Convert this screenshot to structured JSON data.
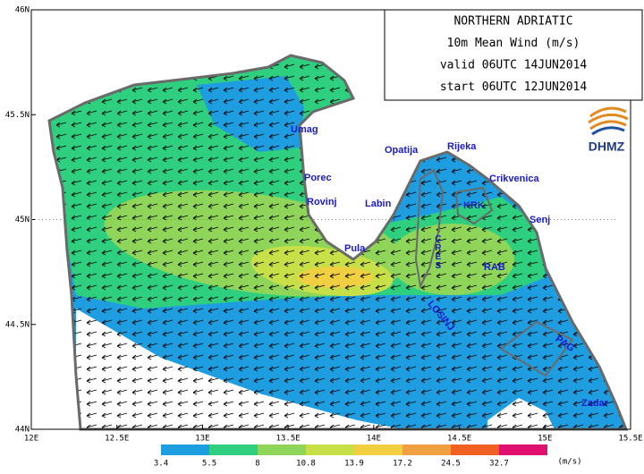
{
  "map": {
    "title_lines": [
      "NORTHERN ADRIATIC",
      "10m Mean Wind (m/s)",
      "valid 06UTC 14JUN2014",
      "start 06UTC 12JUN2014"
    ],
    "logo": "DHMZ",
    "xlim": [
      12,
      15.5
    ],
    "ylim": [
      44,
      46
    ],
    "xticks": [
      {
        "value": 12,
        "label": "12E"
      },
      {
        "value": 12.5,
        "label": "12.5E"
      },
      {
        "value": 13,
        "label": "13E"
      },
      {
        "value": 13.5,
        "label": "13.5E"
      },
      {
        "value": 14,
        "label": "14E"
      },
      {
        "value": 14.5,
        "label": "14.5E"
      },
      {
        "value": 15,
        "label": "15E"
      },
      {
        "value": 15.5,
        "label": "15.5E"
      }
    ],
    "yticks": [
      {
        "value": 44,
        "label": "44N"
      },
      {
        "value": 44.5,
        "label": "44.5N"
      },
      {
        "value": 45,
        "label": "45N"
      },
      {
        "value": 45.5,
        "label": "45.5N"
      },
      {
        "value": 46,
        "label": "46N"
      }
    ],
    "places": [
      "Umag",
      "Porec",
      "Rovinj",
      "Pula",
      "Labin",
      "Opatija",
      "Rijeka",
      "Crikvenica",
      "KRK",
      "Senj",
      "CRES",
      "RAB",
      "LOSINJ",
      "PAG",
      "Zadar"
    ],
    "colorbar": {
      "levels": [
        3.4,
        5.5,
        8,
        10.8,
        13.9,
        17.2,
        24.5,
        32.7
      ],
      "colors": [
        "#1e9de0",
        "#2ecf7e",
        "#8fd55a",
        "#c8e048",
        "#f0d040",
        "#f0a040",
        "#f06020",
        "#e01070"
      ],
      "unit": "(m/s)"
    }
  }
}
